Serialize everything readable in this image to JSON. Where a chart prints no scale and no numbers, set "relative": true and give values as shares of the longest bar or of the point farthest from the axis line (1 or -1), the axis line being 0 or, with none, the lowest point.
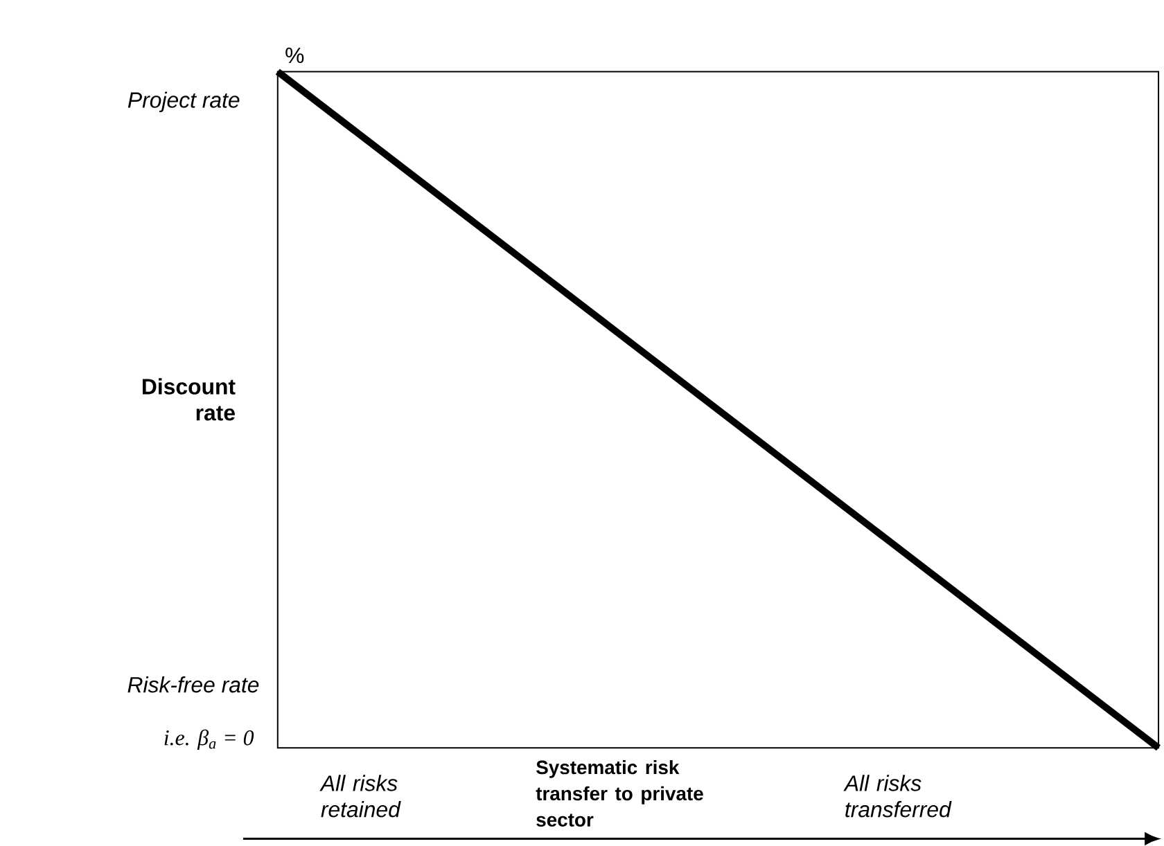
{
  "chart_data": {
    "type": "line",
    "relative": true,
    "categories": [
      null,
      null
    ],
    "values": [
      1,
      0
    ],
    "color": "#000000",
    "line_style": "solid",
    "marker": "none",
    "ylabel": "Discount rate",
    "annotations": [
      "%",
      "Project rate",
      "Risk-free rate",
      "i.e.  β$_{a}$ = 0",
      "All risks retained",
      "Systematic risk transfer to private sector",
      "All risks transferred"
    ]
  }
}
